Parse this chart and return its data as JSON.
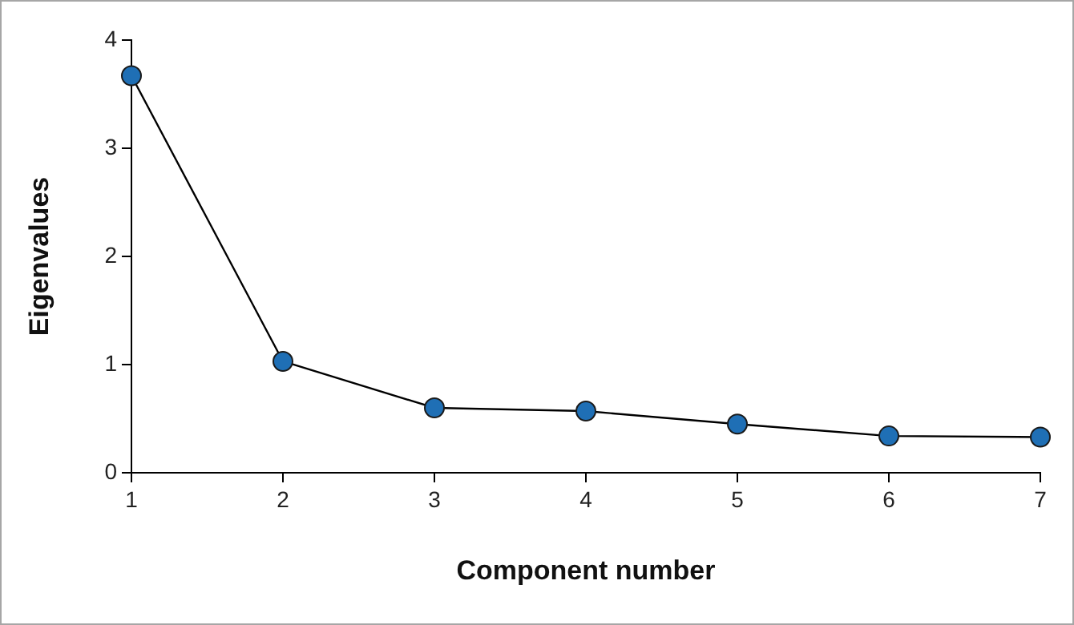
{
  "chart_data": {
    "type": "line",
    "xlabel": "Component number",
    "ylabel": "Eigenvalues",
    "x": [
      1,
      2,
      3,
      4,
      5,
      6,
      7
    ],
    "series": [
      {
        "color": "#1f6fb5",
        "values": [
          3.67,
          1.03,
          0.6,
          0.57,
          0.45,
          0.34,
          0.33
        ]
      }
    ],
    "xlim": [
      1,
      7
    ],
    "xticks": [
      1,
      2,
      3,
      4,
      5,
      6,
      7
    ],
    "ylim": [
      0,
      4
    ],
    "yticks": [
      0,
      1,
      2,
      3,
      4
    ],
    "grid": false,
    "legend": false,
    "marker": "circle",
    "line_style": "solid"
  }
}
